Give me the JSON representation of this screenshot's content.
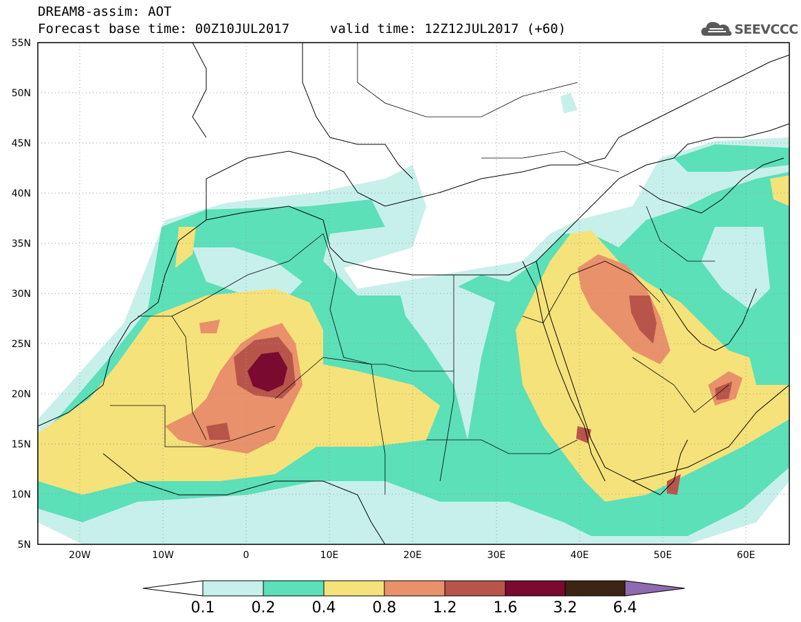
{
  "header": {
    "line1": "DREAM8-assim: AOT",
    "line2": "Forecast base time: 00Z10JUL2017",
    "line3": "valid time: 12Z12JUL2017 (+60)"
  },
  "logo": {
    "text": "SEEVCCC",
    "icon": "cloud-icon"
  },
  "map": {
    "lat_labels": [
      "55N",
      "50N",
      "45N",
      "40N",
      "35N",
      "30N",
      "25N",
      "20N",
      "15N",
      "10N",
      "5N"
    ],
    "lon_labels": [
      "20W",
      "10W",
      "0",
      "10E",
      "20E",
      "30E",
      "40E",
      "50E",
      "60E"
    ],
    "lat_range": [
      5,
      55
    ],
    "lon_range": [
      -25,
      65
    ],
    "grid": "dotted"
  },
  "colorbar": {
    "labels": [
      "0.1",
      "0.2",
      "0.4",
      "0.8",
      "1.2",
      "1.6",
      "3.2",
      "6.4"
    ],
    "colors": [
      "#ffffff",
      "#c8f0ea",
      "#5be0b8",
      "#f5e27a",
      "#e8916a",
      "#b8554a",
      "#7a0a30",
      "#3d2415",
      "#8e6ab0"
    ]
  }
}
